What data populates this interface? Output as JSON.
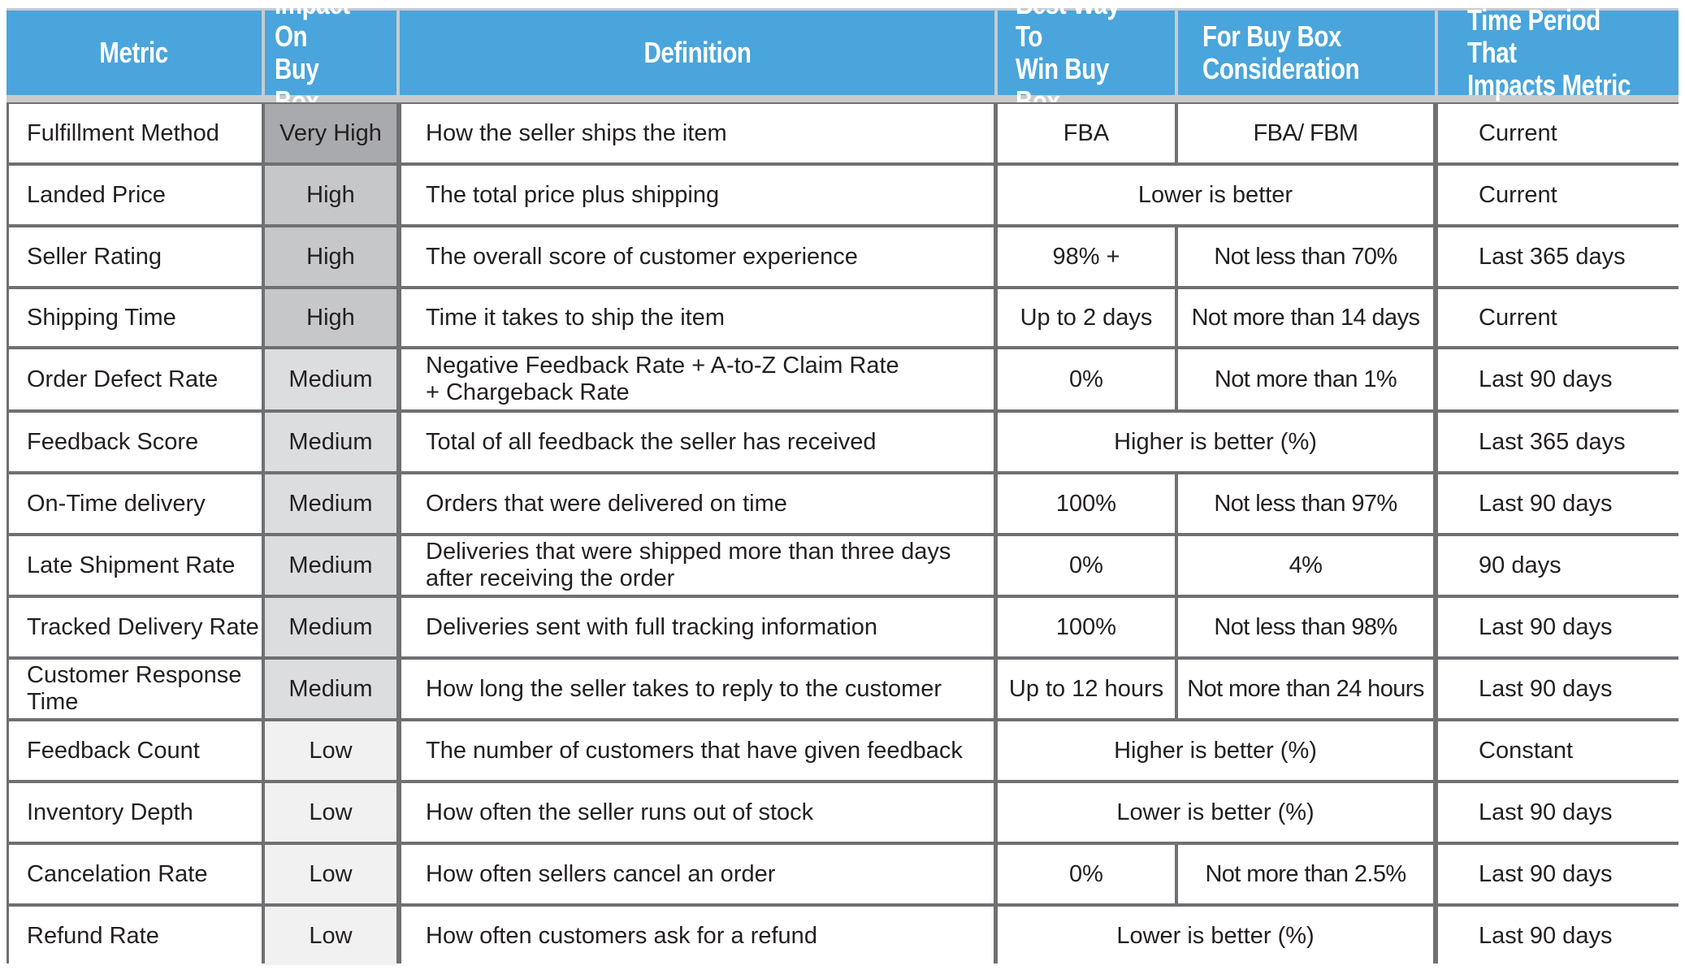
{
  "headers": {
    "metric": "Metric",
    "impact": "Impact On\nBuy Box",
    "definition": "Definition",
    "best_way": "Best Way To\nWin Buy Box",
    "consideration": "For Buy Box\nConsideration",
    "time_period": "Time Period That\nImpacts Metric"
  },
  "colors": {
    "header_bg": "#49a5dc",
    "impact_very_high": "#a8aaad",
    "impact_high": "#c6c7c9",
    "impact_medium": "#dcdddf",
    "impact_low": "#f1f1f2"
  },
  "rows": [
    {
      "metric": "Fulfillment Method",
      "impact": "Very High",
      "impact_level": "very_high",
      "definition": "How the seller ships the item",
      "best": "FBA",
      "consideration": "FBA/ FBM",
      "merged": "",
      "time": "Current"
    },
    {
      "metric": "Landed Price",
      "impact": "High",
      "impact_level": "high",
      "definition": "The total price plus shipping",
      "best": "",
      "consideration": "",
      "merged": "Lower is better",
      "time": "Current"
    },
    {
      "metric": "Seller Rating",
      "impact": "High",
      "impact_level": "high",
      "definition": "The overall score of customer experience",
      "best": "98% +",
      "consideration": "Not less than 70%",
      "merged": "",
      "time": "Last 365 days"
    },
    {
      "metric": "Shipping Time",
      "impact": "High",
      "impact_level": "high",
      "definition": "Time it takes to ship the item",
      "best": "Up to 2 days",
      "consideration": "Not more than 14 days",
      "merged": "",
      "time": "Current"
    },
    {
      "metric": "Order Defect Rate",
      "impact": "Medium",
      "impact_level": "medium",
      "definition": "Negative Feedback Rate + A-to-Z Claim Rate\n+ Chargeback Rate",
      "best": "0%",
      "consideration": "Not more than 1%",
      "merged": "",
      "time": "Last 90 days"
    },
    {
      "metric": "Feedback Score",
      "impact": "Medium",
      "impact_level": "medium",
      "definition": "Total of all feedback the seller has received",
      "best": "",
      "consideration": "",
      "merged": "Higher is better (%)",
      "time": "Last 365 days"
    },
    {
      "metric": "On-Time delivery",
      "impact": "Medium",
      "impact_level": "medium",
      "definition": "Orders that were delivered on time",
      "best": "100%",
      "consideration": "Not less than 97%",
      "merged": "",
      "time": "Last 90 days"
    },
    {
      "metric": "Late Shipment Rate",
      "impact": "Medium",
      "impact_level": "medium",
      "definition": "Deliveries that were shipped more than three days\nafter receiving the order",
      "best": "0%",
      "consideration": "4%",
      "merged": "",
      "time": "90 days"
    },
    {
      "metric": "Tracked Delivery Rate",
      "impact": "Medium",
      "impact_level": "medium",
      "definition": "Deliveries sent with full tracking information",
      "best": "100%",
      "consideration": "Not less than 98%",
      "merged": "",
      "time": "Last 90 days"
    },
    {
      "metric": "Customer Response\nTime",
      "impact": "Medium",
      "impact_level": "medium",
      "definition": "How long the seller takes to reply to the customer",
      "best": "Up to 12 hours",
      "consideration": "Not more than 24 hours",
      "merged": "",
      "time": "Last 90 days"
    },
    {
      "metric": "Feedback Count",
      "impact": "Low",
      "impact_level": "low",
      "definition": "The number of customers that have given feedback",
      "best": "",
      "consideration": "",
      "merged": "Higher is better (%)",
      "time": "Constant"
    },
    {
      "metric": "Inventory Depth",
      "impact": "Low",
      "impact_level": "low",
      "definition": "How often the seller runs out of stock",
      "best": "",
      "consideration": "",
      "merged": "Lower is better (%)",
      "time": "Last 90 days"
    },
    {
      "metric": "Cancelation Rate",
      "impact": "Low",
      "impact_level": "low",
      "definition": "How often sellers cancel an order",
      "best": "0%",
      "consideration": "Not more than 2.5%",
      "merged": "",
      "time": "Last 90 days"
    },
    {
      "metric": "Refund Rate",
      "impact": "Low",
      "impact_level": "low",
      "definition": "How often customers ask for a refund",
      "best": "",
      "consideration": "",
      "merged": "Lower is better (%)",
      "time": "Last 90 days"
    }
  ]
}
